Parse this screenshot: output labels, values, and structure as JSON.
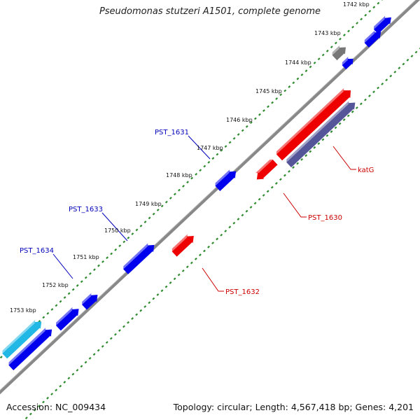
{
  "title": "Pseudomonas stutzeri A1501, complete genome",
  "accession": "Accession: NC_009434",
  "summary": "Topology: circular; Length: 4,567,418 bp; Genes: 4,201",
  "colors": {
    "backbone": "#888888",
    "tick": "#2e8b2e",
    "forward_gene": "#0000ee",
    "reverse_gene": "#ee0000",
    "highlight_gene": "#22b8e6",
    "pseudo_gene": "#777777",
    "rna_gene": "#555599",
    "forward_label": "#0000bb",
    "reverse_label": "#cc0000"
  },
  "ticks": [
    {
      "label": "1742 kbp"
    },
    {
      "label": "1743 kbp"
    },
    {
      "label": "1744 kbp"
    },
    {
      "label": "1745 kbp"
    },
    {
      "label": "1746 kbp"
    },
    {
      "label": "1747 kbp"
    },
    {
      "label": "1748 kbp"
    },
    {
      "label": "1749 kbp"
    },
    {
      "label": "1750 kbp"
    },
    {
      "label": "1751 kbp"
    },
    {
      "label": "1752 kbp"
    },
    {
      "label": "1753 kbp"
    }
  ],
  "gene_labels": [
    {
      "text": "PST_1631",
      "strand": "forward"
    },
    {
      "text": "PST_1633",
      "strand": "forward"
    },
    {
      "text": "PST_1634",
      "strand": "forward"
    },
    {
      "text": "katG",
      "strand": "reverse"
    },
    {
      "text": "PST_1630",
      "strand": "reverse"
    },
    {
      "text": "PST_1632",
      "strand": "reverse"
    }
  ]
}
